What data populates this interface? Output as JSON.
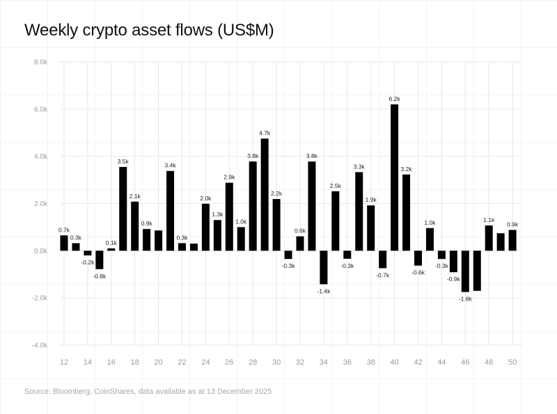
{
  "title": "Weekly crypto asset flows (US$M)",
  "source": "Source: Bloomberg, CoinShares, data available as at 13 December 2025",
  "colors": {
    "bar": "#000000",
    "grid": "#e6e6e6",
    "axis_text": "#9a9a9a",
    "label_text": "#222222"
  },
  "chart_data": {
    "type": "bar",
    "title": "Weekly crypto asset flows (US$M)",
    "xlabel": "",
    "ylabel": "",
    "ylim": [
      -4000,
      8000
    ],
    "yticks": [
      -4000,
      -2000,
      0,
      2000,
      4000,
      6000,
      8000
    ],
    "ytick_labels": [
      "-4.0k",
      "-2.0k",
      "0.0k",
      "2.0k",
      "4.0k",
      "6.0k",
      "8.0k"
    ],
    "xtick_labels": [
      "12",
      "14",
      "16",
      "18",
      "20",
      "22",
      "24",
      "26",
      "28",
      "30",
      "32",
      "34",
      "36",
      "38",
      "40",
      "42",
      "44",
      "46",
      "48",
      "50"
    ],
    "grid": true,
    "categories": [
      12,
      13,
      14,
      15,
      16,
      17,
      18,
      19,
      20,
      21,
      22,
      23,
      24,
      25,
      26,
      27,
      28,
      29,
      30,
      31,
      32,
      33,
      34,
      35,
      36,
      37,
      38,
      39,
      40,
      41,
      42,
      43,
      44,
      45,
      46,
      47,
      48,
      49,
      50
    ],
    "values": [
      650,
      320,
      -200,
      -780,
      100,
      3550,
      2080,
      920,
      860,
      3380,
      320,
      300,
      1990,
      1300,
      2880,
      1000,
      3780,
      4750,
      2190,
      -350,
      610,
      3780,
      -1420,
      2520,
      -340,
      3330,
      1920,
      -740,
      6200,
      3230,
      -630,
      960,
      -350,
      -910,
      -1750,
      -1700,
      1070,
      740,
      880
    ],
    "data_labels": [
      "0.7k",
      "0.3k",
      "-0.2k",
      "-0.8k",
      "0.1k",
      "3.5k",
      "2.1k",
      "0.9k",
      "",
      "3.4k",
      "0.3k",
      "",
      "2.0k",
      "1.3k",
      "2.9k",
      "1.0k",
      "3.8k",
      "4.7k",
      "2.2k",
      "-0.3k",
      "0.6k",
      "3.8k",
      "-1.4k",
      "2.5k",
      "-0.3k",
      "3.3k",
      "1.9k",
      "-0.7k",
      "6.2k",
      "3.2k",
      "-0.6k",
      "1.0k",
      "-0.3k",
      "-0.9k",
      "-1.8k",
      "",
      "1.1k",
      "",
      "0.9k"
    ]
  }
}
